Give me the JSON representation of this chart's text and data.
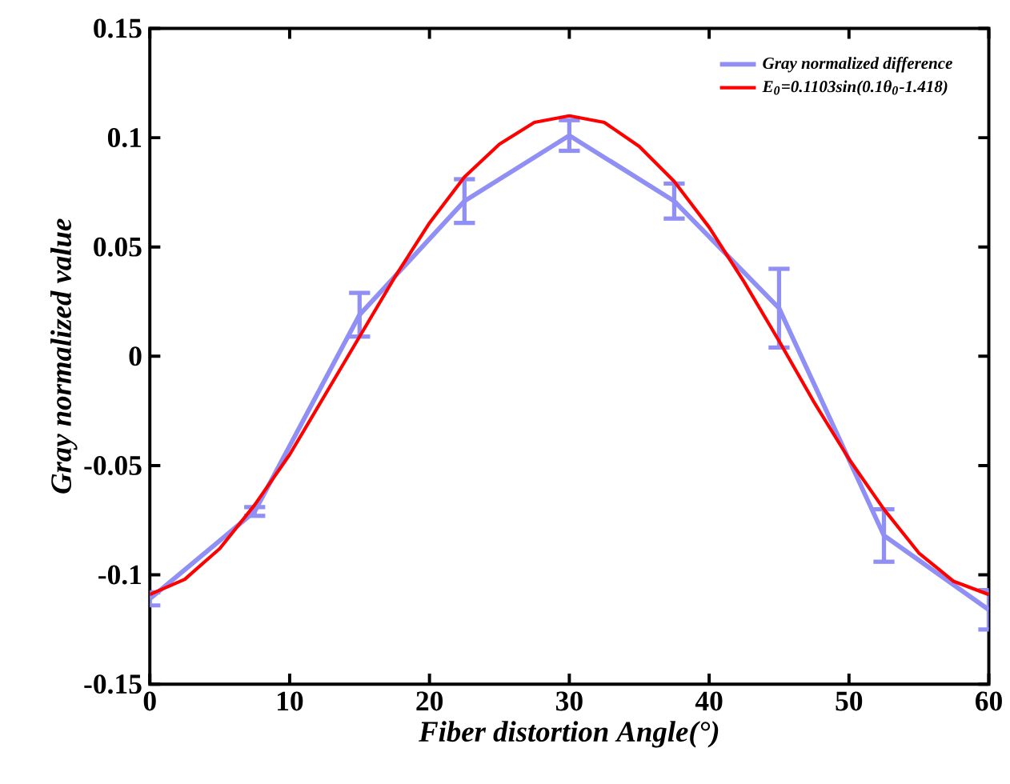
{
  "chart_data": {
    "type": "line",
    "xlabel": "Fiber distortion Angle(°)",
    "ylabel": "Gray normalized value",
    "xlim": [
      0,
      60
    ],
    "xticks": [
      0,
      10,
      20,
      30,
      40,
      50,
      60
    ],
    "ylim": [
      -0.15,
      0.15
    ],
    "yticks": [
      -0.15,
      -0.1,
      -0.05,
      0,
      0.05,
      0.1,
      0.15
    ],
    "legend": "top right",
    "marker": "none",
    "line_style": "solid",
    "series": [
      {
        "name": "Gray normalized difference",
        "color": "#8f8ff5",
        "x": [
          0,
          7.5,
          15,
          22.5,
          30,
          37.5,
          45,
          52.5,
          60
        ],
        "values": [
          -0.111,
          -0.071,
          0.019,
          0.071,
          0.101,
          0.071,
          0.022,
          -0.082,
          -0.116
        ],
        "errors": [
          0.003,
          0.002,
          0.01,
          0.01,
          0.007,
          0.008,
          0.018,
          0.012,
          0.009
        ]
      },
      {
        "name": "E$_{0}$=0.1103sin(0.1θ$_{0}$-1.418)",
        "color": "#ff0000",
        "x": [
          0,
          2.5,
          5,
          7.5,
          10,
          12.5,
          15,
          17.5,
          20,
          22.5,
          25,
          27.5,
          30,
          32.5,
          35,
          37.5,
          40,
          42.5,
          45,
          47.5,
          50,
          52.5,
          55,
          57.5,
          60
        ],
        "values": [
          -0.109,
          -0.102,
          -0.088,
          -0.068,
          -0.045,
          -0.018,
          0.009,
          0.036,
          0.061,
          0.082,
          0.097,
          0.107,
          0.11,
          0.107,
          0.096,
          0.08,
          0.059,
          0.034,
          0.007,
          -0.021,
          -0.047,
          -0.07,
          -0.09,
          -0.103,
          -0.109
        ]
      }
    ]
  }
}
